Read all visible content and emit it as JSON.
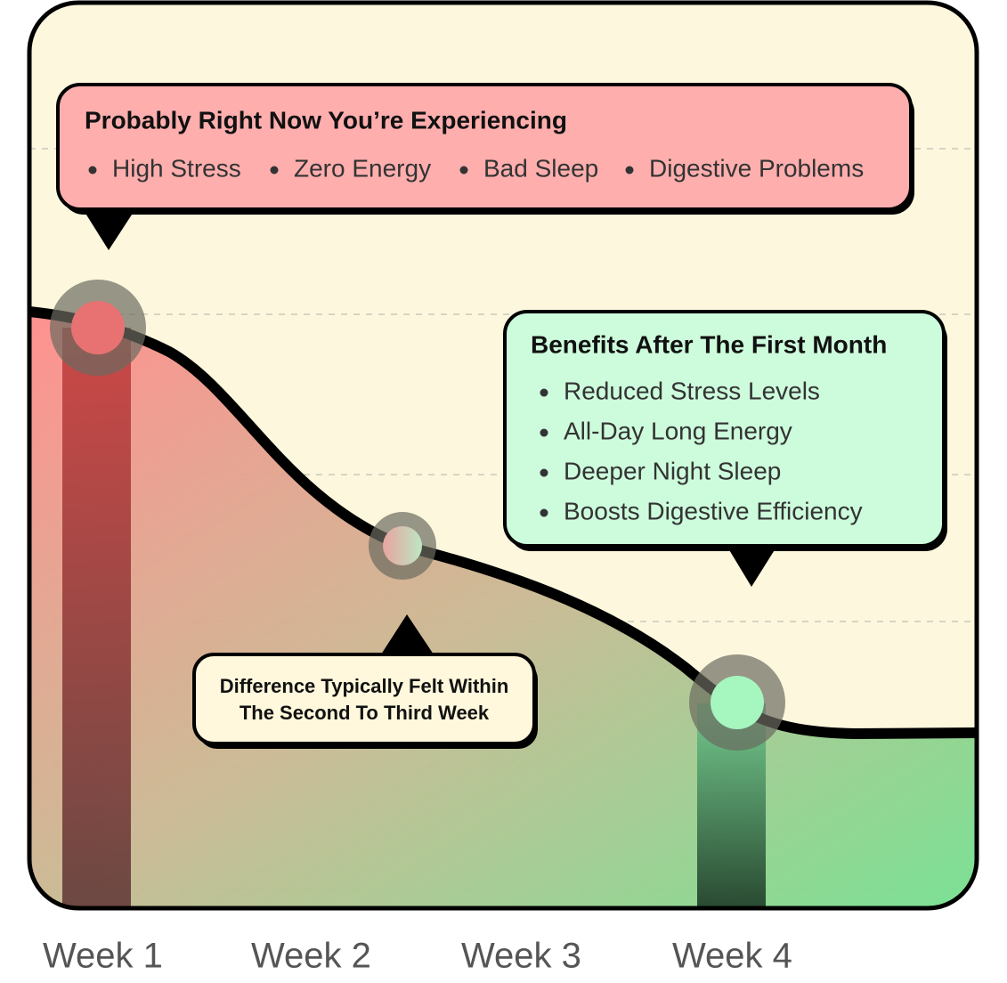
{
  "callouts": [
    {
      "title": "Probably Right Now You’re Experiencing",
      "items": [
        "High Stress",
        "Zero Energy",
        "Bad Sleep",
        "Digestive Problems"
      ]
    },
    {
      "title": "Benefits After The First Month",
      "items": [
        "Reduced Stress Levels",
        "All-Day Long Energy",
        "Deeper Night Sleep",
        "Boosts Digestive Efficiency"
      ]
    }
  ],
  "note": {
    "lines": [
      "Difference Typically Felt Within",
      "The Second To Third Week"
    ]
  },
  "x_labels": [
    "Week 1",
    "Week 2",
    "Week 3",
    "Week 4"
  ]
}
